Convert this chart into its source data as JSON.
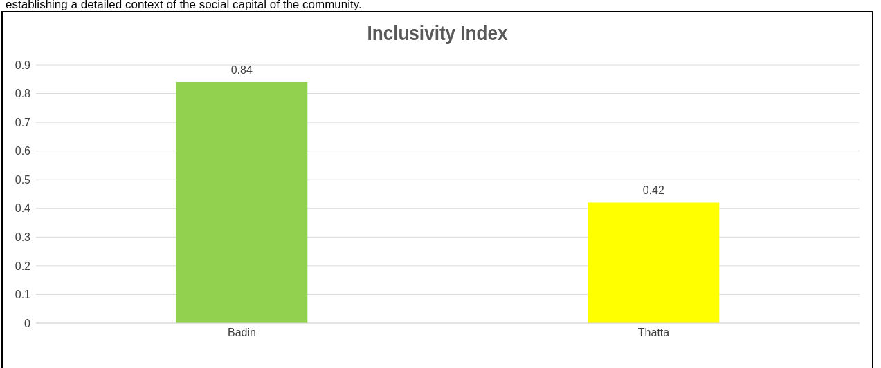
{
  "chart_data": {
    "type": "bar",
    "title": "Inclusivity Index",
    "annotations": [
      "establishing a detailed context of the social capital of the community."
    ],
    "categories": [
      "Badin",
      "Thatta"
    ],
    "values": [
      0.84,
      0.42
    ],
    "colors": [
      "#92d050",
      "#ffff00"
    ],
    "ylim": [
      0,
      0.9
    ],
    "yticks": [
      0,
      0.1,
      0.2,
      0.3,
      0.4,
      0.5,
      0.6,
      0.7,
      0.8,
      0.9
    ],
    "grid": "y",
    "data_labels": true
  }
}
